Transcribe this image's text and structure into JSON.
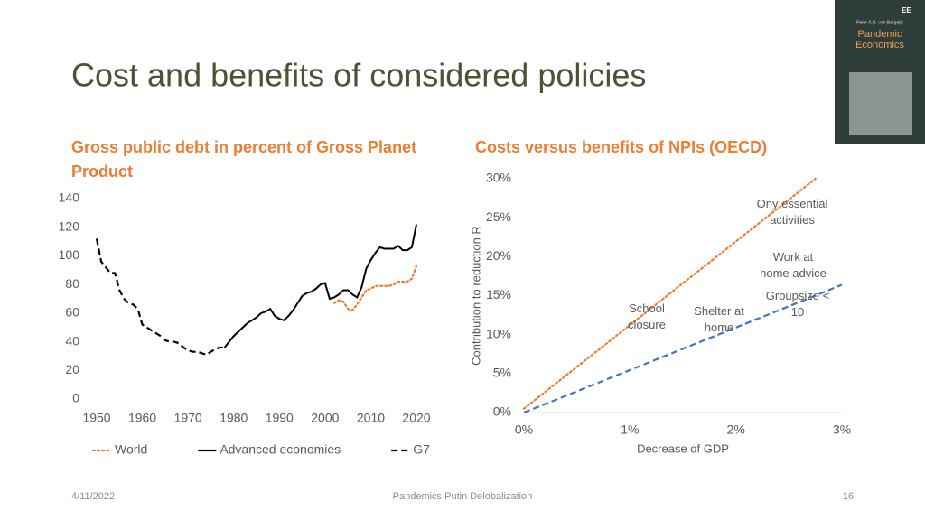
{
  "slide": {
    "title": "Cost and benefits of considered policies",
    "date": "4/11/2022",
    "footer": "Pandemics Putin Delobalization",
    "page": "16"
  },
  "book_cover": {
    "logo": "EE",
    "author": "Peter A.G. van Bergeijk",
    "title": "Pandemic Economics"
  },
  "chart_data": [
    {
      "type": "line",
      "title": "Gross public debt in percent of Gross Planet Product",
      "x": [
        1950,
        1951,
        1952,
        1953,
        1954,
        1955,
        1956,
        1957,
        1958,
        1959,
        1960,
        1961,
        1962,
        1963,
        1964,
        1965,
        1966,
        1967,
        1968,
        1969,
        1970,
        1971,
        1972,
        1973,
        1974,
        1975,
        1976,
        1977,
        1978,
        1979,
        1980,
        1981,
        1982,
        1983,
        1984,
        1985,
        1986,
        1987,
        1988,
        1989,
        1990,
        1991,
        1992,
        1993,
        1994,
        1995,
        1996,
        1997,
        1998,
        1999,
        2000,
        2001,
        2002,
        2003,
        2004,
        2005,
        2006,
        2007,
        2008,
        2009,
        2010,
        2011,
        2012,
        2013,
        2014,
        2015,
        2016,
        2017,
        2018,
        2019,
        2020
      ],
      "xlim": [
        1950,
        2020
      ],
      "xticks": [
        1950,
        1960,
        1970,
        1980,
        1990,
        2000,
        2010,
        2020
      ],
      "ylim": [
        0,
        140
      ],
      "yticks": [
        0,
        20,
        40,
        60,
        80,
        100,
        120,
        140
      ],
      "grid": false,
      "legend": "bottom",
      "series": [
        {
          "name": "World",
          "color": "#ed7d31",
          "style": "dotted",
          "values": [
            null,
            null,
            null,
            null,
            null,
            null,
            null,
            null,
            null,
            null,
            null,
            null,
            null,
            null,
            null,
            null,
            null,
            null,
            null,
            null,
            null,
            null,
            null,
            null,
            null,
            null,
            null,
            null,
            null,
            null,
            null,
            null,
            null,
            null,
            null,
            null,
            null,
            null,
            null,
            null,
            null,
            null,
            null,
            null,
            null,
            null,
            null,
            null,
            null,
            null,
            null,
            null,
            67,
            69,
            68,
            63,
            62,
            66,
            71,
            76,
            77,
            79,
            79,
            79,
            79,
            80,
            82,
            82,
            82,
            84,
            93
          ]
        },
        {
          "name": "Advanced economies",
          "color": "#000000",
          "style": "solid",
          "values": [
            null,
            null,
            null,
            null,
            null,
            null,
            null,
            null,
            null,
            null,
            null,
            null,
            null,
            null,
            null,
            null,
            null,
            null,
            null,
            null,
            null,
            null,
            null,
            null,
            null,
            null,
            null,
            null,
            36,
            40,
            44,
            47,
            50,
            53,
            55,
            57,
            60,
            61,
            63,
            58,
            56,
            55,
            58,
            62,
            67,
            72,
            74,
            75,
            77,
            80,
            81,
            70,
            71,
            73,
            76,
            76,
            73,
            71,
            78,
            91,
            97,
            102,
            106,
            105,
            105,
            105,
            107,
            104,
            104,
            106,
            122
          ]
        },
        {
          "name": "G7",
          "color": "#000000",
          "style": "dashed",
          "values": [
            112,
            96,
            92,
            88,
            88,
            76,
            70,
            67,
            66,
            63,
            52,
            50,
            48,
            46,
            44,
            41,
            40,
            40,
            39,
            36,
            34,
            33,
            33,
            32,
            31,
            33,
            35,
            36,
            36,
            null,
            null,
            null,
            null,
            null,
            null,
            null,
            null,
            null,
            null,
            null,
            null,
            null,
            null,
            null,
            null,
            null,
            null,
            null,
            null,
            null,
            null,
            null,
            null,
            null,
            null,
            null,
            null,
            null,
            null,
            null,
            null,
            null,
            null,
            null,
            null,
            null,
            null,
            null,
            null,
            null,
            null
          ]
        }
      ]
    },
    {
      "type": "line",
      "title": "Costs versus benefits of NPIs (OECD)",
      "x_label": "Decrease of GDP",
      "y_label": "Contribution to reduction R",
      "x": [
        0,
        2.75,
        3
      ],
      "xlim": [
        0,
        3
      ],
      "xticks": [
        {
          "value": 0,
          "label": "0%"
        },
        {
          "value": 1,
          "label": "1%"
        },
        {
          "value": 2,
          "label": "2%"
        },
        {
          "value": 3,
          "label": "3%"
        }
      ],
      "ylim": [
        0,
        30
      ],
      "yticks": [
        {
          "value": 0,
          "label": "0%"
        },
        {
          "value": 5,
          "label": "5%"
        },
        {
          "value": 10,
          "label": "10%"
        },
        {
          "value": 15,
          "label": "15%"
        },
        {
          "value": 20,
          "label": "20%"
        },
        {
          "value": 25,
          "label": "25%"
        },
        {
          "value": 30,
          "label": "30%"
        }
      ],
      "grid": false,
      "series": [
        {
          "color": "#ed7d31",
          "style": "dotted",
          "values": [
            0.5,
            30,
            null
          ]
        },
        {
          "color": "#4472c4",
          "style": "dashed",
          "values": [
            0,
            15,
            16.4
          ]
        }
      ],
      "annotations": [
        {
          "lines": [
            "Ony essential",
            "activities"
          ]
        },
        {
          "lines": [
            "Work at",
            "home advice"
          ]
        },
        {
          "lines": [
            "Groupsize <",
            "10"
          ]
        },
        {
          "lines": [
            "School",
            "closure"
          ]
        },
        {
          "lines": [
            "Shelter at",
            "home"
          ]
        }
      ]
    }
  ]
}
